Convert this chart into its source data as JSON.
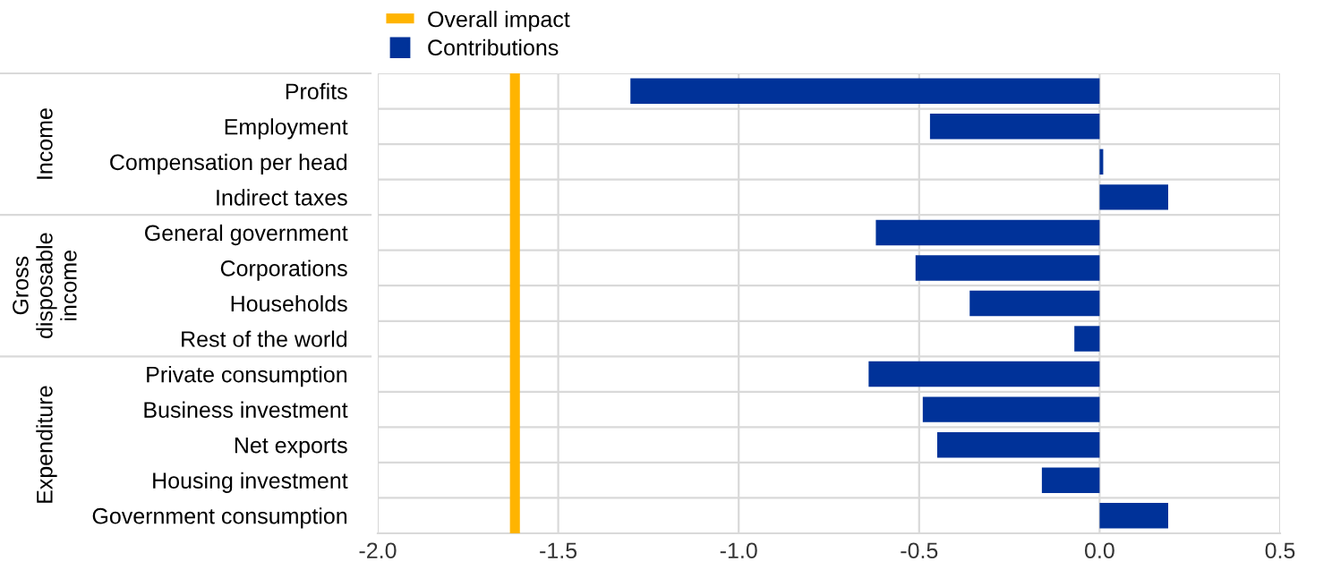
{
  "chart_data": {
    "type": "bar",
    "orientation": "horizontal",
    "categories": [
      "Profits",
      "Employment",
      "Compensation per head",
      "Indirect taxes",
      "General government",
      "Corporations",
      "Households",
      "Rest of the world",
      "Private consumption",
      "Business investment",
      "Net exports",
      "Housing investment",
      "Government consumption"
    ],
    "series": [
      {
        "name": "Contributions",
        "color": "#003299",
        "values": [
          -1.3,
          -0.47,
          0.01,
          0.19,
          -0.62,
          -0.51,
          -0.36,
          -0.07,
          -0.64,
          -0.49,
          -0.45,
          -0.16,
          0.19
        ]
      }
    ],
    "ref_lines": [
      {
        "axis": "x",
        "value": -1.62,
        "label": "Overall impact",
        "color": "#ffb400"
      }
    ],
    "annotations": [
      "Income",
      "Gross\ndisposable\nincome",
      "Expenditure"
    ],
    "xlim": [
      -2.0,
      0.5
    ],
    "xticks": [
      {
        "value": -2.0,
        "label": "-2.0"
      },
      -1.5,
      {
        "value": -1.0,
        "label": "-1.0"
      },
      -0.5,
      {
        "value": 0.0,
        "label": "0.0"
      },
      0.5
    ],
    "grid": true,
    "legend": "top left"
  }
}
